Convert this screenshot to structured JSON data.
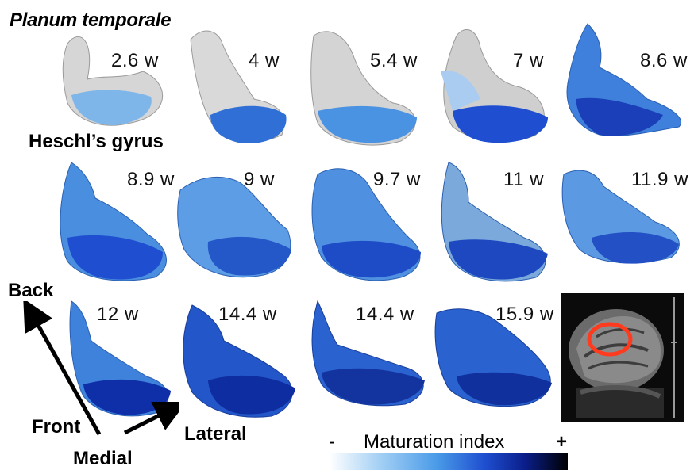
{
  "figure": {
    "title": "Planum temporale",
    "heschl_label": "Heschl’s gyrus",
    "ages": [
      "2.6 w",
      "4 w",
      "5.4 w",
      "7 w",
      "8.6 w",
      "8.9 w",
      "9 w",
      "9.7 w",
      "11 w",
      "11.9 w",
      "12 w",
      "14.4 w",
      "14.4 w",
      "15.9 w"
    ],
    "orientation": {
      "back": "Back",
      "front": "Front",
      "lateral": "Lateral",
      "medial": "Medial"
    },
    "colorbar": {
      "label": "Maturation index",
      "min": "-",
      "max": "+"
    },
    "colors": {
      "immature": "#d8d8d8",
      "light_blue": "#7fb6ea",
      "mid_blue": "#2f6fd6",
      "dark_blue": "#0b2a9a",
      "highlight_ring": "#ff3b1f"
    }
  }
}
